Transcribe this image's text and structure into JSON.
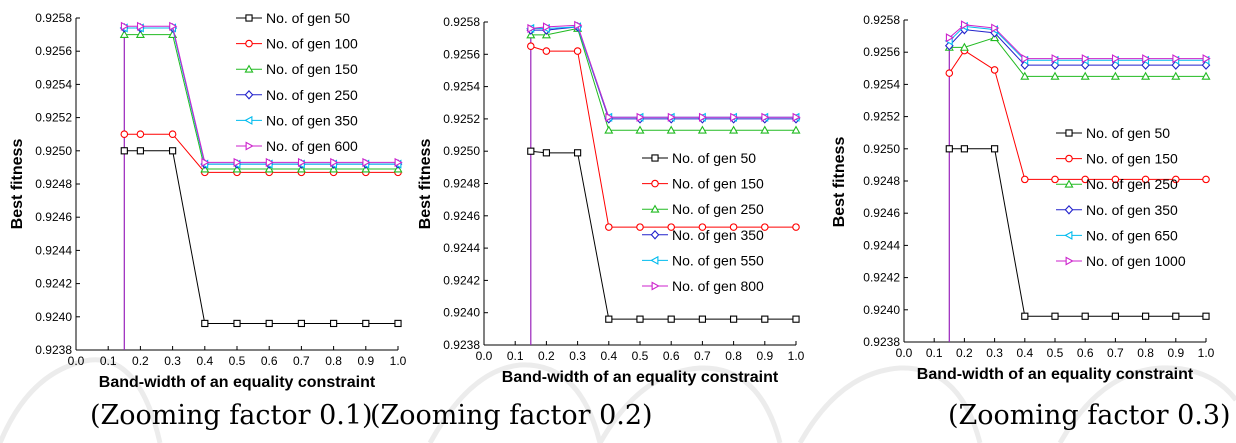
{
  "chart_data": [
    {
      "type": "line",
      "caption": "(Zooming factor 0.1)",
      "xlabel": "Band-width of an equality constraint",
      "ylabel": "Best fitness",
      "xlim": [
        0.0,
        1.0
      ],
      "ylim": [
        0.9238,
        0.9258
      ],
      "xticks": [
        "0.0",
        "0.1",
        "0.2",
        "0.3",
        "0.4",
        "0.5",
        "0.6",
        "0.7",
        "0.8",
        "0.9",
        "1.0"
      ],
      "yticks": [
        "0.9238",
        "0.9240",
        "0.9242",
        "0.9244",
        "0.9246",
        "0.9248",
        "0.9250",
        "0.9252",
        "0.9254",
        "0.9256",
        "0.9258"
      ],
      "grid": false,
      "legend_position": "top-right",
      "vline_x": 0.15,
      "x": [
        0.15,
        0.2,
        0.3,
        0.4,
        0.5,
        0.6,
        0.7,
        0.8,
        0.9,
        1.0
      ],
      "series": [
        {
          "name": "No. of gen 50",
          "marker": "square",
          "color": "#000000",
          "values": [
            0.925,
            0.925,
            0.925,
            0.92396,
            0.92396,
            0.92396,
            0.92396,
            0.92396,
            0.92396,
            0.92396
          ]
        },
        {
          "name": "No. of gen 100",
          "marker": "circle",
          "color": "#ff0000",
          "values": [
            0.9251,
            0.9251,
            0.9251,
            0.92487,
            0.92487,
            0.92487,
            0.92487,
            0.92487,
            0.92487,
            0.92487
          ]
        },
        {
          "name": "No. of gen 150",
          "marker": "triangle-up",
          "color": "#22bb22",
          "values": [
            0.9257,
            0.9257,
            0.9257,
            0.92489,
            0.92489,
            0.92489,
            0.92489,
            0.92489,
            0.92489,
            0.92489
          ]
        },
        {
          "name": "No. of gen 250",
          "marker": "diamond",
          "color": "#2222cc",
          "values": [
            0.92574,
            0.92574,
            0.92574,
            0.92492,
            0.92492,
            0.92492,
            0.92492,
            0.92492,
            0.92492,
            0.92492
          ]
        },
        {
          "name": "No. of gen 350",
          "marker": "triangle-left",
          "color": "#00bbee",
          "values": [
            0.92574,
            0.92574,
            0.92574,
            0.92492,
            0.92492,
            0.92492,
            0.92492,
            0.92492,
            0.92492,
            0.92492
          ]
        },
        {
          "name": "No. of gen 600",
          "marker": "triangle-right",
          "color": "#cc22cc",
          "values": [
            0.92575,
            0.92575,
            0.92575,
            0.92493,
            0.92493,
            0.92493,
            0.92493,
            0.92493,
            0.92493,
            0.92493
          ]
        }
      ]
    },
    {
      "type": "line",
      "caption": "(Zooming factor 0.2)",
      "xlabel": "Band-width of an equality constraint",
      "ylabel": "Best fitness",
      "xlim": [
        0.0,
        1.0
      ],
      "ylim": [
        0.9238,
        0.9258
      ],
      "xticks": [
        "0.0",
        "0.1",
        "0.2",
        "0.3",
        "0.4",
        "0.5",
        "0.6",
        "0.7",
        "0.8",
        "0.9",
        "1.0"
      ],
      "yticks": [
        "0.9238",
        "0.9240",
        "0.9242",
        "0.9244",
        "0.9246",
        "0.9248",
        "0.9250",
        "0.9252",
        "0.9254",
        "0.9256",
        "0.9258"
      ],
      "grid": false,
      "legend_position": "right",
      "vline_x": 0.15,
      "x": [
        0.15,
        0.2,
        0.3,
        0.4,
        0.5,
        0.6,
        0.7,
        0.8,
        0.9,
        1.0
      ],
      "series": [
        {
          "name": "No. of gen 50",
          "marker": "square",
          "color": "#000000",
          "values": [
            0.925,
            0.92499,
            0.92499,
            0.92396,
            0.92396,
            0.92396,
            0.92396,
            0.92396,
            0.92396,
            0.92396
          ]
        },
        {
          "name": "No. of gen 150",
          "marker": "circle",
          "color": "#ff0000",
          "values": [
            0.92565,
            0.92562,
            0.92562,
            0.92453,
            0.92453,
            0.92453,
            0.92453,
            0.92453,
            0.92453,
            0.92453
          ]
        },
        {
          "name": "No. of gen 250",
          "marker": "triangle-up",
          "color": "#22bb22",
          "values": [
            0.92572,
            0.92572,
            0.92576,
            0.92513,
            0.92513,
            0.92513,
            0.92513,
            0.92513,
            0.92513,
            0.92513
          ]
        },
        {
          "name": "No. of gen 350",
          "marker": "diamond",
          "color": "#2222cc",
          "values": [
            0.92575,
            0.92575,
            0.92577,
            0.9252,
            0.9252,
            0.9252,
            0.9252,
            0.9252,
            0.9252,
            0.9252
          ]
        },
        {
          "name": "No. of gen 550",
          "marker": "triangle-left",
          "color": "#00bbee",
          "values": [
            0.92576,
            0.92576,
            0.92577,
            0.92521,
            0.92521,
            0.92521,
            0.92521,
            0.92521,
            0.92521,
            0.92521
          ]
        },
        {
          "name": "No. of gen 800",
          "marker": "triangle-right",
          "color": "#cc22cc",
          "values": [
            0.92576,
            0.92577,
            0.92578,
            0.92521,
            0.92521,
            0.92521,
            0.92521,
            0.92521,
            0.92521,
            0.92521
          ]
        }
      ]
    },
    {
      "type": "line",
      "caption": "(Zooming factor 0.3)",
      "xlabel": "Band-width of an equality constraint",
      "ylabel": "Best fitness",
      "xlim": [
        0.0,
        1.0
      ],
      "ylim": [
        0.9238,
        0.9258
      ],
      "xticks": [
        "0.0",
        "0.1",
        "0.2",
        "0.3",
        "0.4",
        "0.5",
        "0.6",
        "0.7",
        "0.8",
        "0.9",
        "1.0"
      ],
      "yticks": [
        "0.9238",
        "0.9240",
        "0.9242",
        "0.9244",
        "0.9246",
        "0.9248",
        "0.9250",
        "0.9252",
        "0.9254",
        "0.9256",
        "0.9258"
      ],
      "grid": false,
      "legend_position": "right",
      "vline_x": 0.15,
      "x": [
        0.15,
        0.2,
        0.3,
        0.4,
        0.5,
        0.6,
        0.7,
        0.8,
        0.9,
        1.0
      ],
      "series": [
        {
          "name": "No. of gen 50",
          "marker": "square",
          "color": "#000000",
          "values": [
            0.925,
            0.925,
            0.925,
            0.92396,
            0.92396,
            0.92396,
            0.92396,
            0.92396,
            0.92396,
            0.92396
          ]
        },
        {
          "name": "No. of gen 150",
          "marker": "circle",
          "color": "#ff0000",
          "values": [
            0.92547,
            0.92561,
            0.92549,
            0.92481,
            0.92481,
            0.92481,
            0.92481,
            0.92481,
            0.92481,
            0.92481
          ]
        },
        {
          "name": "No. of gen 250",
          "marker": "triangle-up",
          "color": "#22bb22",
          "values": [
            0.92563,
            0.92563,
            0.92569,
            0.92545,
            0.92545,
            0.92545,
            0.92545,
            0.92545,
            0.92545,
            0.92545
          ]
        },
        {
          "name": "No. of gen 350",
          "marker": "diamond",
          "color": "#2222cc",
          "values": [
            0.92564,
            0.92574,
            0.92572,
            0.92552,
            0.92552,
            0.92552,
            0.92552,
            0.92552,
            0.92552,
            0.92552
          ]
        },
        {
          "name": "No. of gen 650",
          "marker": "triangle-left",
          "color": "#00bbee",
          "values": [
            0.92567,
            0.92576,
            0.92574,
            0.92555,
            0.92555,
            0.92555,
            0.92555,
            0.92555,
            0.92555,
            0.92555
          ]
        },
        {
          "name": "No. of gen 1000",
          "marker": "triangle-right",
          "color": "#cc22cc",
          "values": [
            0.92569,
            0.92577,
            0.92575,
            0.92556,
            0.92556,
            0.92556,
            0.92556,
            0.92556,
            0.92556,
            0.92556
          ]
        }
      ]
    }
  ]
}
